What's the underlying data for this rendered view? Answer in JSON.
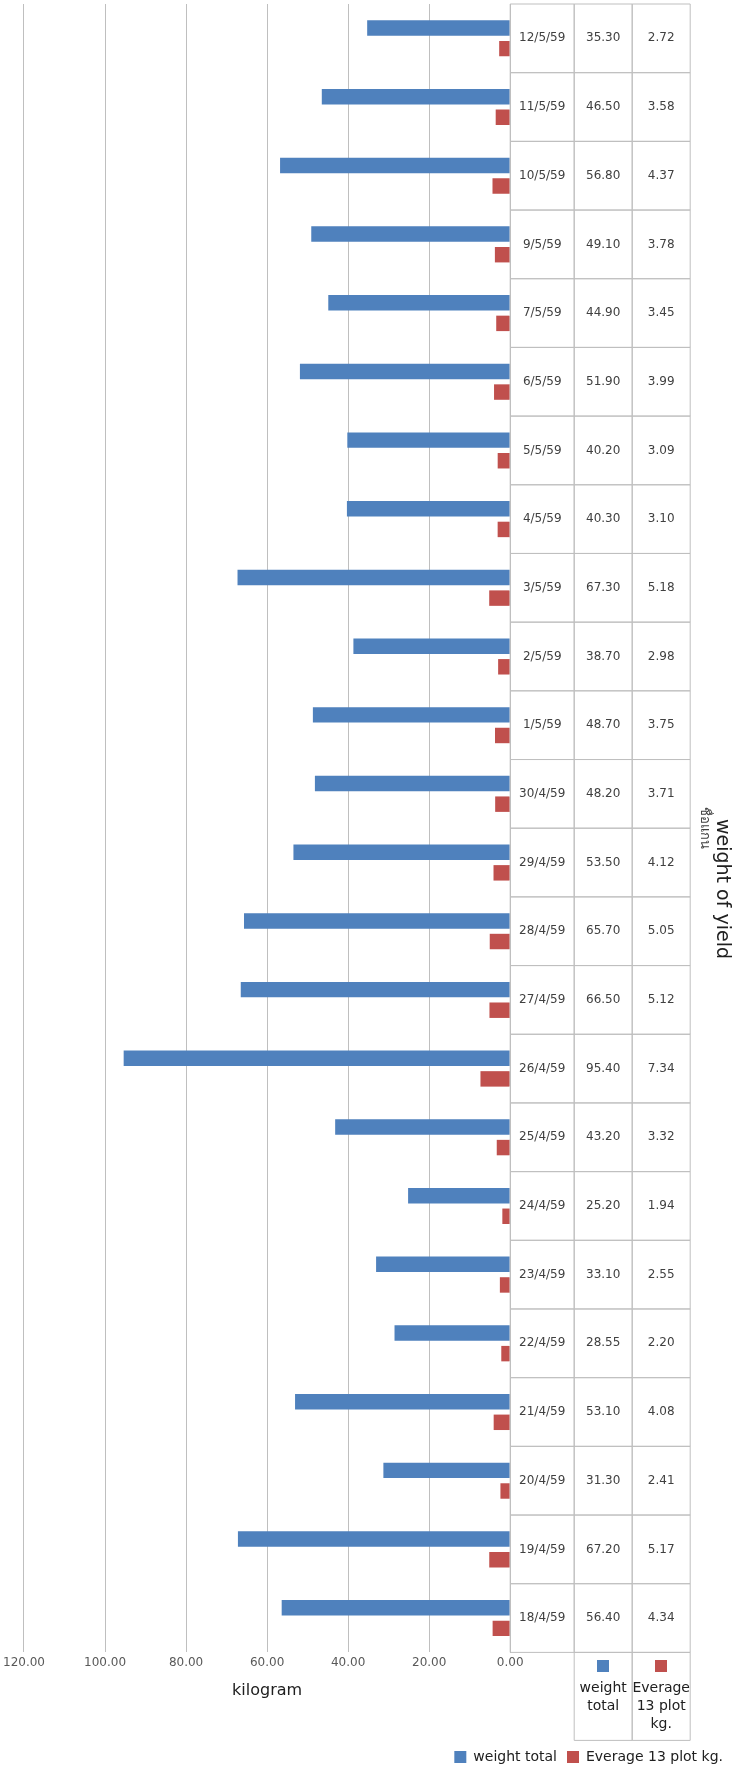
{
  "chart_data": {
    "type": "bar",
    "orientation": "horizontal",
    "title": "weight of yield",
    "xlabel": "kilogram",
    "annotations": [
      "ชื่อแกน"
    ],
    "categories": [
      "12/5/59",
      "11/5/59",
      "10/5/59",
      "9/5/59",
      "7/5/59",
      "6/5/59",
      "5/5/59",
      "4/5/59",
      "3/5/59",
      "2/5/59",
      "1/5/59",
      "30/4/59",
      "29/4/59",
      "28/4/59",
      "27/4/59",
      "26/4/59",
      "25/4/59",
      "24/4/59",
      "23/4/59",
      "22/4/59",
      "21/4/59",
      "20/4/59",
      "19/4/59",
      "18/4/59"
    ],
    "series": [
      {
        "name": "weight total",
        "color": "#4f81bd",
        "values": [
          35.3,
          46.5,
          56.8,
          49.1,
          44.9,
          51.9,
          40.2,
          40.3,
          67.3,
          38.7,
          48.7,
          48.2,
          53.5,
          65.7,
          66.5,
          95.4,
          43.2,
          25.2,
          33.1,
          28.55,
          53.1,
          31.3,
          67.2,
          56.4
        ],
        "value_labels": [
          "35.30",
          "46.50",
          "56.80",
          "49.10",
          "44.90",
          "51.90",
          "40.20",
          "40.30",
          "67.30",
          "38.70",
          "48.70",
          "48.20",
          "53.50",
          "65.70",
          "66.50",
          "95.40",
          "43.20",
          "25.20",
          "33.10",
          "28.55",
          "53.10",
          "31.30",
          "67.20",
          "56.40"
        ]
      },
      {
        "name": "Everage 13 plot kg.",
        "color": "#c0504d",
        "values": [
          2.72,
          3.58,
          4.37,
          3.78,
          3.45,
          3.99,
          3.09,
          3.1,
          5.18,
          2.98,
          3.75,
          3.71,
          4.12,
          5.05,
          5.12,
          7.34,
          3.32,
          1.94,
          2.55,
          2.2,
          4.08,
          2.41,
          5.17,
          4.34
        ],
        "value_labels": [
          "2.72",
          "3.58",
          "4.37",
          "3.78",
          "3.45",
          "3.99",
          "3.09",
          "3.10",
          "5.18",
          "2.98",
          "3.75",
          "3.71",
          "4.12",
          "5.05",
          "5.12",
          "7.34",
          "3.32",
          "1.94",
          "2.55",
          "2.20",
          "4.08",
          "2.41",
          "5.17",
          "4.34"
        ]
      }
    ],
    "xlim": [
      120,
      0
    ],
    "xticks": [
      {
        "value": 120,
        "label": "120.00"
      },
      {
        "value": 100,
        "label": "100.00"
      },
      {
        "value": 80,
        "label": "80.00"
      },
      {
        "value": 60,
        "label": "60.00"
      },
      {
        "value": 40,
        "label": "40.00"
      },
      {
        "value": 20,
        "label": "20.00"
      },
      {
        "value": 0,
        "label": "0.00"
      }
    ],
    "grid": "x",
    "legend": "bottom right"
  }
}
